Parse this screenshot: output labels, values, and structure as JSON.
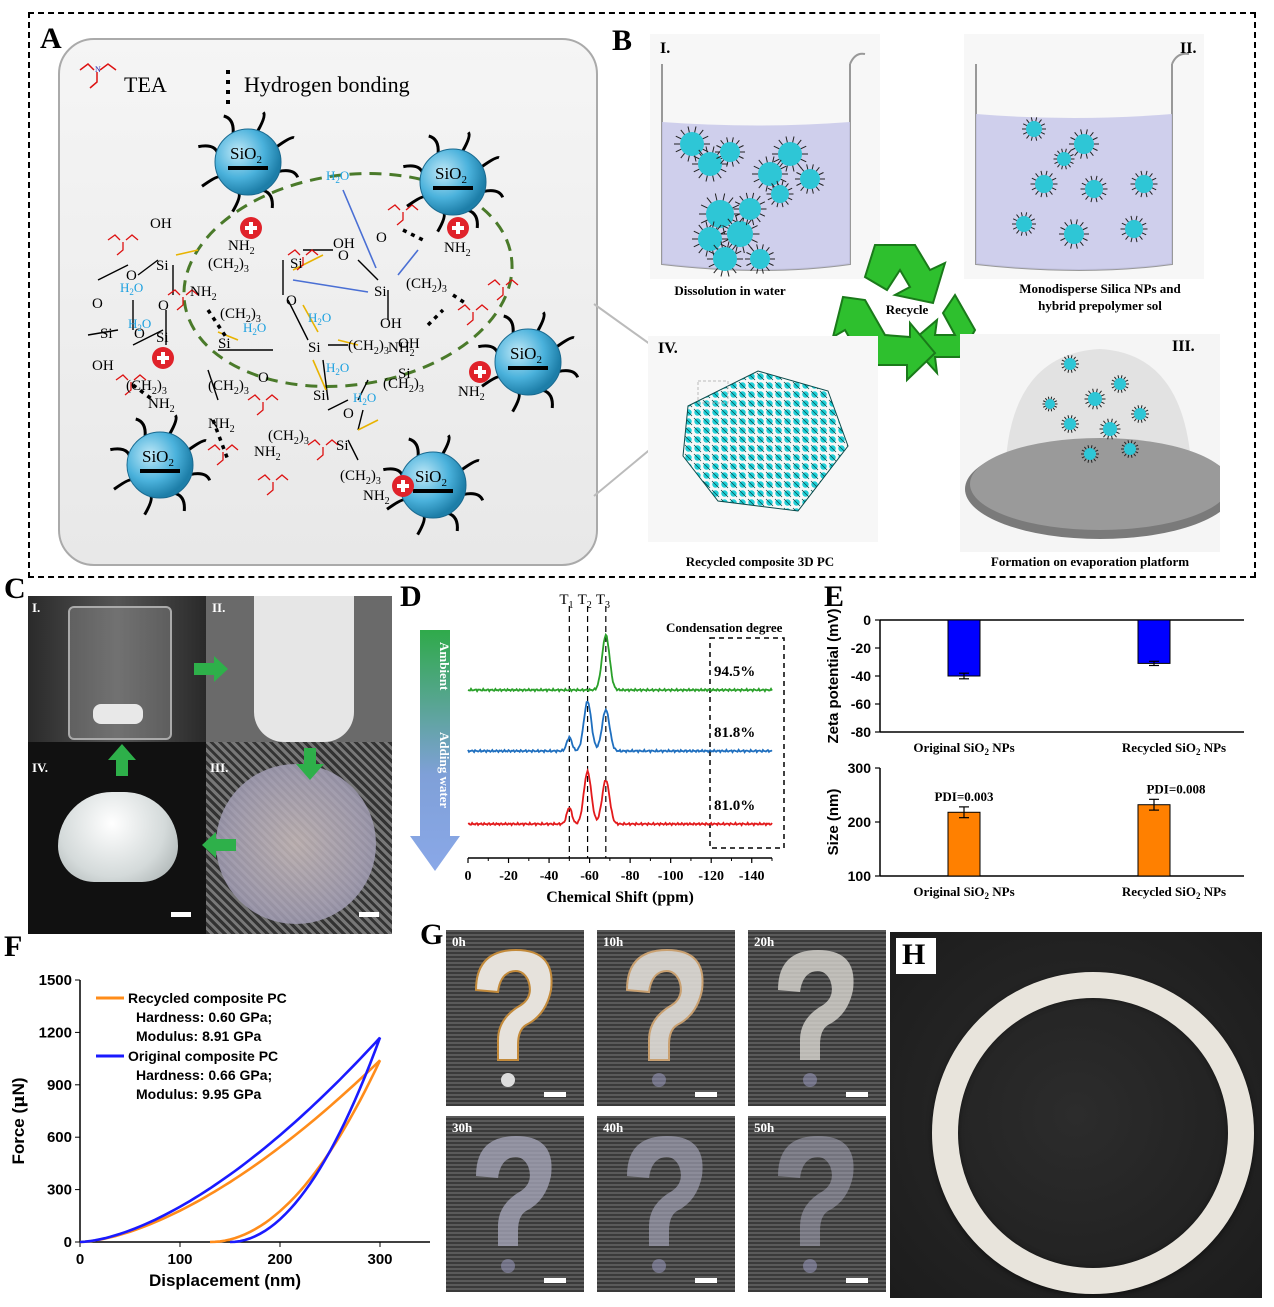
{
  "panels": {
    "A": {
      "label": "A",
      "legend_tea": "TEA",
      "legend_hbond": "Hydrogen bonding",
      "particle_label": "SiO",
      "particle_sub": "2",
      "chem": {
        "si": "Si",
        "o": "O",
        "oh": "OH",
        "nh2": "NH",
        "nh2_sub": "2",
        "h2o": "H",
        "h2o_sub": "2",
        "h2o_o": "O",
        "ch2_3": "(CH",
        "ch2_3_tail": ")",
        "ch2_sub": "2",
        "three": "3"
      }
    },
    "B": {
      "label": "B",
      "steps": [
        {
          "roman": "I.",
          "caption": "Dissolution in water"
        },
        {
          "roman": "II.",
          "caption_line1": "Monodisperse Silica NPs and",
          "caption_line2": "hybrid prepolymer sol"
        },
        {
          "roman": "III.",
          "caption": "Formation on evaporation platform"
        },
        {
          "roman": "IV.",
          "caption": "Recycled composite 3D PC"
        }
      ],
      "recycle": "Recycle"
    },
    "C": {
      "label": "C",
      "steps": [
        "I.",
        "II.",
        "III.",
        "IV."
      ]
    },
    "D": {
      "label": "D",
      "peaks": [
        "T",
        "T",
        "T"
      ],
      "peak_subs": [
        "1",
        "2",
        "3"
      ],
      "arrow_top": "Ambient",
      "arrow_bottom": "Adding water",
      "box_title": "Condensation degree"
    },
    "E": {
      "label": "E"
    },
    "F": {
      "label": "F"
    },
    "G": {
      "label": "G",
      "times": [
        "0h",
        "10h",
        "20h",
        "30h",
        "40h",
        "50h"
      ]
    },
    "H": {
      "label": "H"
    }
  },
  "chart_data": [
    {
      "id": "D",
      "type": "line",
      "xlabel": "Chemical Shift (ppm)",
      "xlim": [
        0,
        -150
      ],
      "xticks": [
        0,
        -20,
        -40,
        -60,
        -80,
        -100,
        -120,
        -140
      ],
      "series": [
        {
          "color": "#2aa02a",
          "label": "94.5%",
          "peaks": [
            {
              "x": -68,
              "h": 1.0
            }
          ]
        },
        {
          "color": "#1f6fbf",
          "label": "81.8%",
          "peaks": [
            {
              "x": -50,
              "h": 0.25
            },
            {
              "x": -59,
              "h": 0.9
            },
            {
              "x": -68,
              "h": 0.75
            }
          ]
        },
        {
          "color": "#e31a1c",
          "label": "81.0%",
          "peaks": [
            {
              "x": -50,
              "h": 0.3
            },
            {
              "x": -59,
              "h": 0.95
            },
            {
              "x": -68,
              "h": 0.8
            }
          ]
        }
      ],
      "dashed_x": [
        -50,
        -59,
        -68
      ]
    },
    {
      "id": "E-top",
      "type": "bar",
      "ylabel": "Zeta potential (mV)",
      "ylim": [
        -80,
        0
      ],
      "yticks": [
        0,
        -20,
        -40,
        -60,
        -80
      ],
      "categories": [
        "Original SiO",
        "Recycled SiO"
      ],
      "category_sub": "2",
      "category_tail": " NPs",
      "values": [
        -40,
        -31
      ],
      "errors": [
        2,
        1.5
      ],
      "color": "#0000ff"
    },
    {
      "id": "E-bottom",
      "type": "bar",
      "ylabel": "Size (nm)",
      "ylim": [
        100,
        300
      ],
      "yticks": [
        100,
        200,
        300
      ],
      "categories": [
        "Original SiO",
        "Recycled SiO"
      ],
      "category_sub": "2",
      "category_tail": " NPs",
      "values": [
        218,
        232
      ],
      "errors": [
        10,
        10
      ],
      "annotations": [
        "PDI=0.003",
        "PDI=0.008"
      ],
      "color": "#ff8000"
    },
    {
      "id": "F",
      "type": "line",
      "xlabel": "Displacement (nm)",
      "ylabel_pre": "Force (",
      "ylabel_mu": "μ",
      "ylabel_post": "N)",
      "xlim": [
        0,
        350
      ],
      "ylim": [
        0,
        1500
      ],
      "xticks": [
        0,
        100,
        200,
        300
      ],
      "yticks": [
        0,
        300,
        600,
        900,
        1200,
        1500
      ],
      "series": [
        {
          "name": "Recycled composite PC",
          "color": "#ff8c1a",
          "line1": "Hardness: 0.60 GPa;",
          "line2": "Modulus: 8.91 GPa",
          "peak_x": 300,
          "peak_y": 1040,
          "offset_x": 130
        },
        {
          "name": "Original composite PC",
          "color": "#1a1aff",
          "line1": "Hardness: 0.66 GPa;",
          "line2": "Modulus: 9.95 GPa",
          "peak_x": 300,
          "peak_y": 1170,
          "offset_x": 150
        }
      ]
    }
  ]
}
